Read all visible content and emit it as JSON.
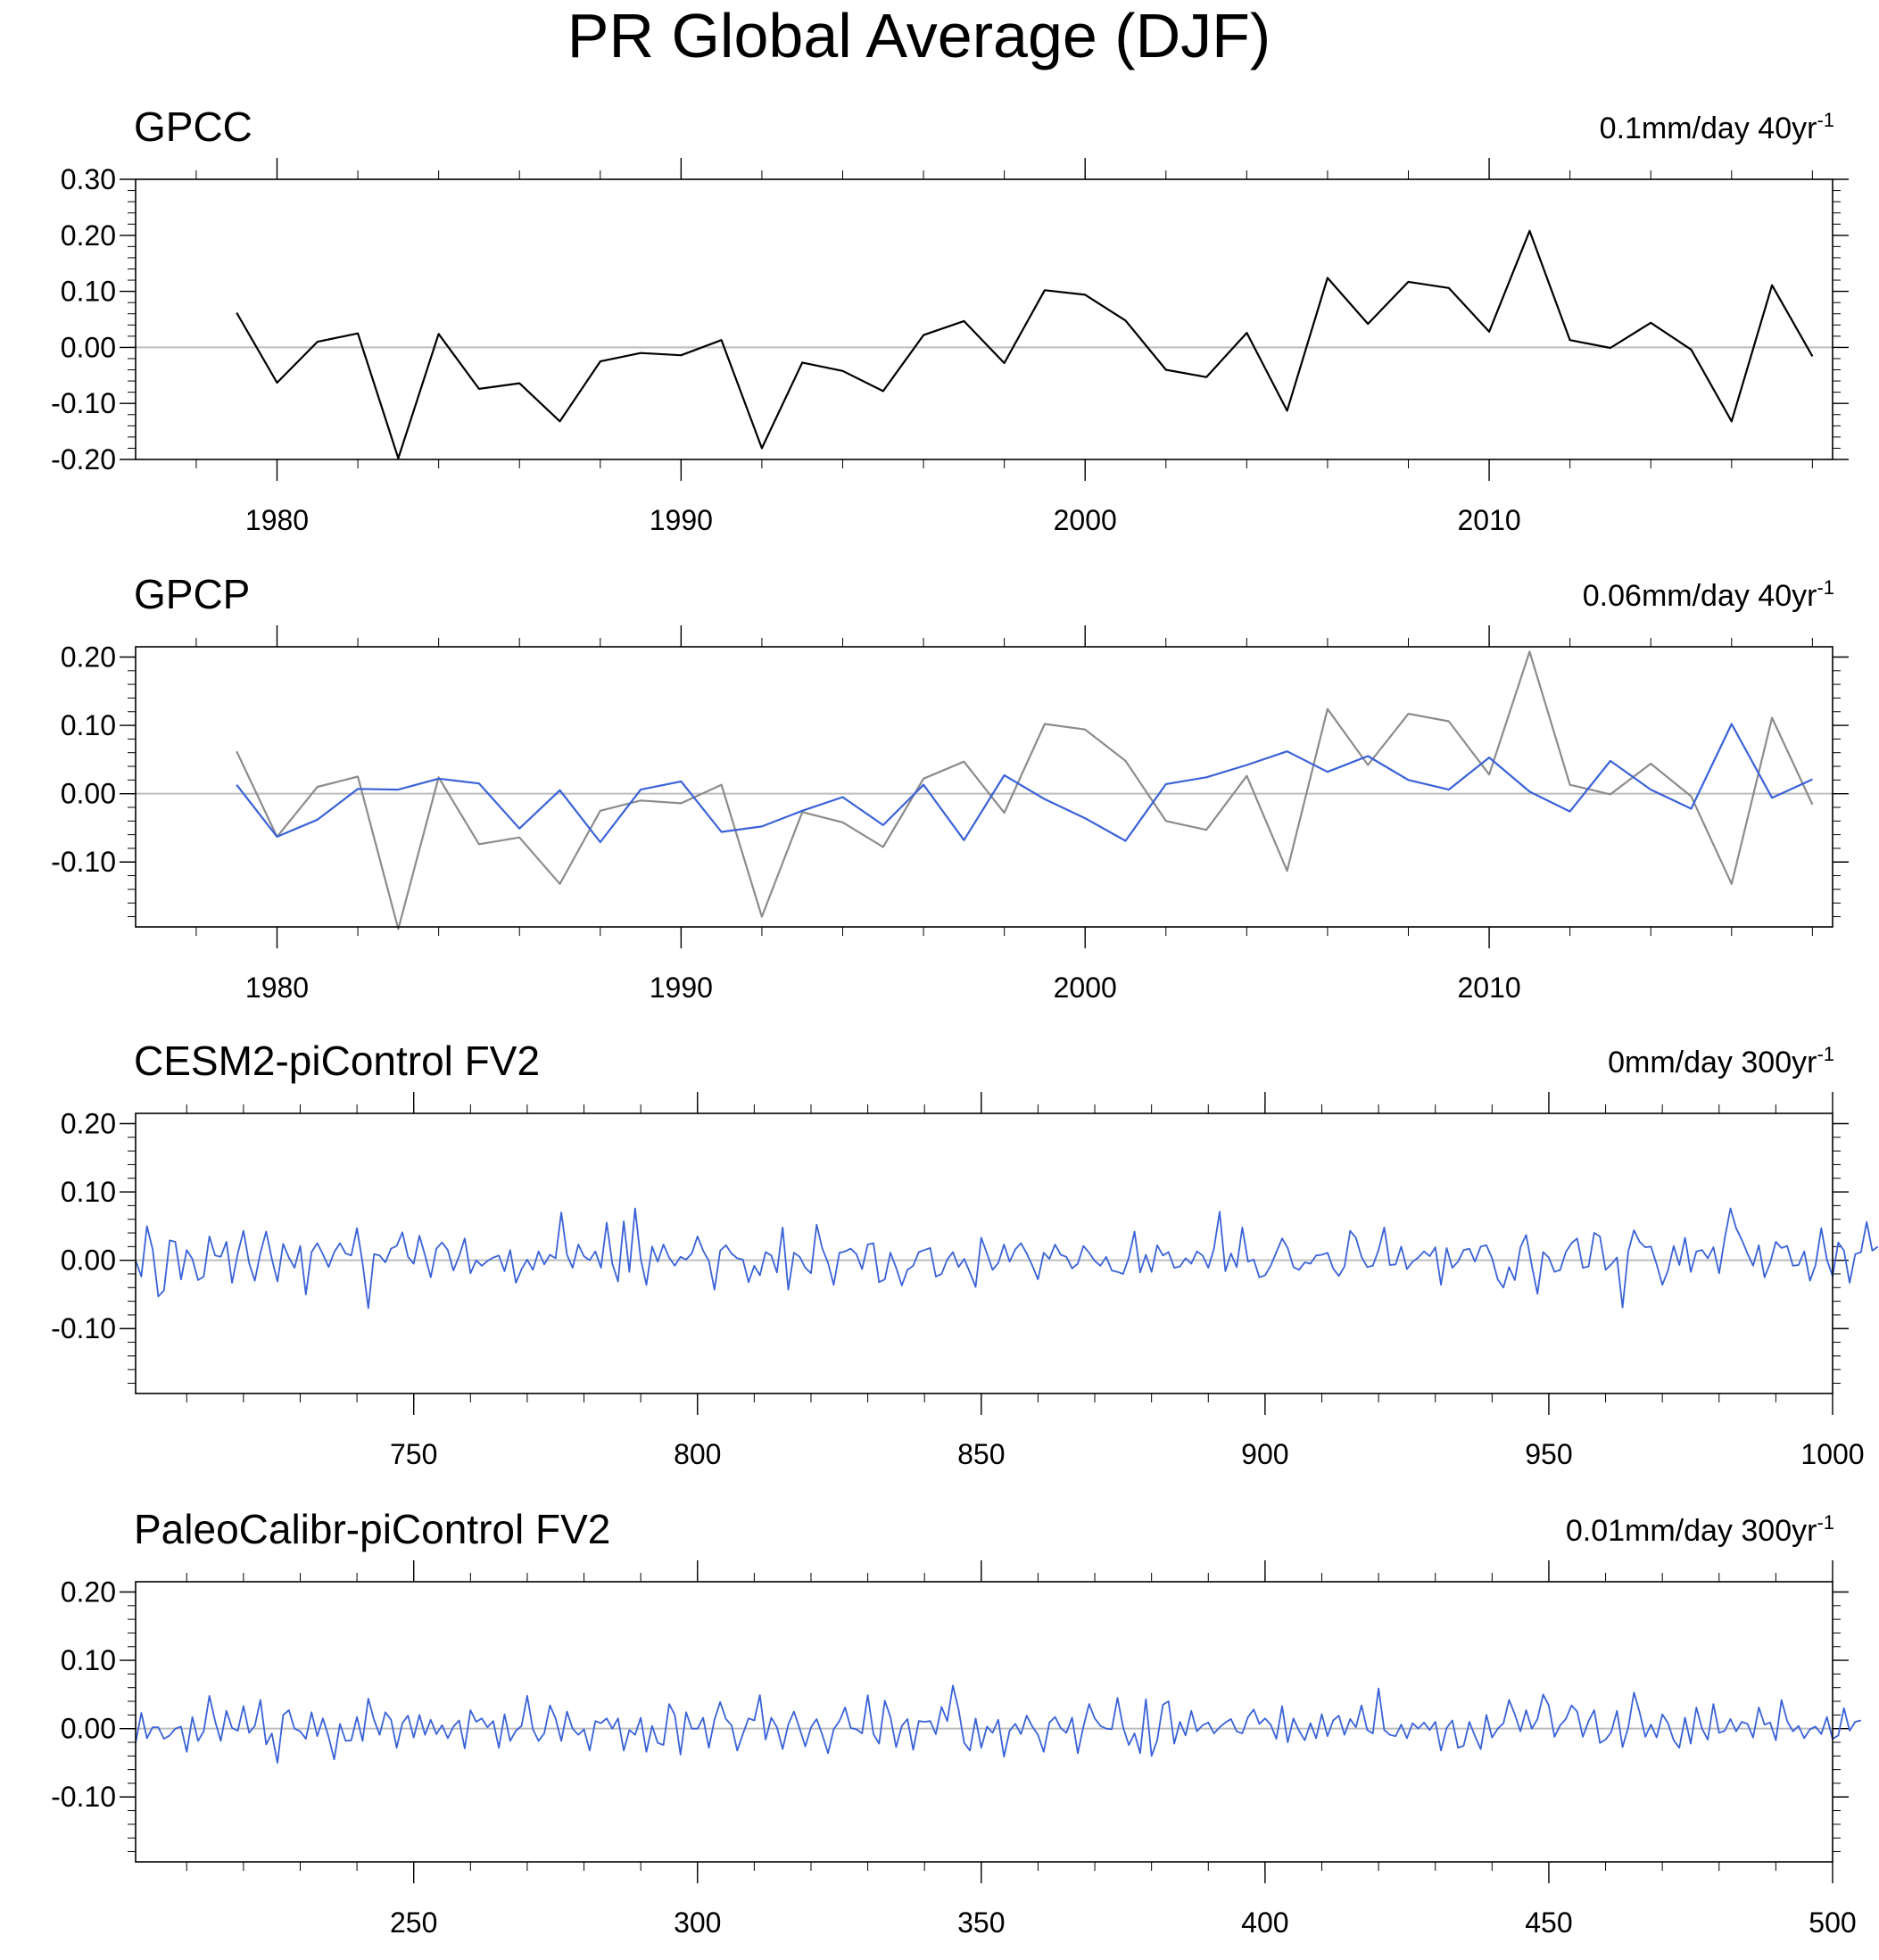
{
  "title": "PR Global Average (DJF)",
  "colors": {
    "obs": "#000000",
    "ref": "#8c8c8c",
    "model": "#3a62d8",
    "zero": "#bdbdbd"
  },
  "chart_data": [
    {
      "type": "line",
      "title": "GPCC",
      "trend_label": "0.1mm/day 40yr",
      "trend_sup": "-1",
      "xlim": [
        1976.5,
        2018.5
      ],
      "ylim": [
        -0.2,
        0.3
      ],
      "yticks": [
        -0.2,
        -0.1,
        0.0,
        0.1,
        0.2,
        0.3
      ],
      "ytick_labels": [
        "-0.20",
        "-0.10",
        "0.00",
        "0.10",
        "0.20",
        "0.30"
      ],
      "xticks": [
        1980,
        1990,
        2000,
        2010
      ],
      "xtick_labels": [
        "1980",
        "1990",
        "2000",
        "2010"
      ],
      "x": [
        1979,
        1980,
        1981,
        1982,
        1983,
        1984,
        1985,
        1986,
        1987,
        1988,
        1989,
        1990,
        1991,
        1992,
        1993,
        1994,
        1995,
        1996,
        1997,
        1998,
        1999,
        2000,
        2001,
        2002,
        2003,
        2004,
        2005,
        2006,
        2007,
        2008,
        2009,
        2010,
        2011,
        2012,
        2013,
        2014,
        2015,
        2016,
        2017,
        2018
      ],
      "series": [
        {
          "name": "GPCC",
          "color": "#000000",
          "values": [
            0.062,
            -0.063,
            0.01,
            0.025,
            -0.198,
            0.024,
            -0.074,
            -0.064,
            -0.132,
            -0.025,
            -0.01,
            -0.014,
            0.013,
            -0.18,
            -0.027,
            -0.042,
            -0.078,
            0.022,
            0.047,
            -0.028,
            0.102,
            0.094,
            0.048,
            -0.04,
            -0.053,
            0.026,
            -0.113,
            0.124,
            0.042,
            0.117,
            0.106,
            0.028,
            0.208,
            0.013,
            -0.001,
            0.044,
            -0.004,
            -0.132,
            0.111,
            -0.016
          ]
        }
      ]
    },
    {
      "type": "line",
      "title": "GPCP",
      "trend_label": "0.06mm/day 40yr",
      "trend_sup": "-1",
      "xlim": [
        1976.5,
        2018.5
      ],
      "ylim": [
        -0.195,
        0.215
      ],
      "yticks": [
        -0.1,
        0.0,
        0.1,
        0.2
      ],
      "ytick_labels": [
        "-0.10",
        "0.00",
        "0.10",
        "0.20"
      ],
      "xticks": [
        1980,
        1990,
        2000,
        2010
      ],
      "xtick_labels": [
        "1980",
        "1990",
        "2000",
        "2010"
      ],
      "x": [
        1979,
        1980,
        1981,
        1982,
        1983,
        1984,
        1985,
        1986,
        1987,
        1988,
        1989,
        1990,
        1991,
        1992,
        1993,
        1994,
        1995,
        1996,
        1997,
        1998,
        1999,
        2000,
        2001,
        2002,
        2003,
        2004,
        2005,
        2006,
        2007,
        2008,
        2009,
        2010,
        2011,
        2012,
        2013,
        2014,
        2015,
        2016,
        2017,
        2018
      ],
      "series": [
        {
          "name": "GPCC",
          "color": "#8c8c8c",
          "values": [
            0.062,
            -0.063,
            0.01,
            0.025,
            -0.198,
            0.024,
            -0.074,
            -0.064,
            -0.132,
            -0.025,
            -0.01,
            -0.014,
            0.013,
            -0.18,
            -0.027,
            -0.042,
            -0.078,
            0.022,
            0.047,
            -0.028,
            0.102,
            0.094,
            0.048,
            -0.04,
            -0.053,
            0.026,
            -0.113,
            0.124,
            0.042,
            0.117,
            0.106,
            0.028,
            0.208,
            0.013,
            -0.001,
            0.044,
            -0.004,
            -0.132,
            0.111,
            -0.016
          ]
        },
        {
          "name": "GPCP",
          "color": "#3a62d8",
          "values": [
            0.013,
            -0.063,
            -0.038,
            0.007,
            0.006,
            0.022,
            0.015,
            -0.051,
            0.005,
            -0.071,
            0.006,
            0.018,
            -0.056,
            -0.048,
            -0.025,
            -0.005,
            -0.046,
            0.013,
            -0.068,
            0.027,
            -0.008,
            -0.036,
            -0.069,
            0.014,
            0.024,
            0.042,
            0.062,
            0.032,
            0.055,
            0.02,
            0.006,
            0.053,
            0.003,
            -0.026,
            0.048,
            0.006,
            -0.022,
            0.102,
            -0.006,
            0.021
          ]
        }
      ]
    },
    {
      "type": "line",
      "title": "CESM2-piControl FV2",
      "trend_label": "0mm/day 300yr",
      "trend_sup": "-1",
      "xlim": [
        701,
        1000
      ],
      "ylim": [
        -0.195,
        0.215
      ],
      "yticks": [
        -0.1,
        0.0,
        0.1,
        0.2
      ],
      "ytick_labels": [
        "-0.10",
        "0.00",
        "0.10",
        "0.20"
      ],
      "xticks": [
        750,
        800,
        850,
        900,
        950,
        1000
      ],
      "xtick_labels": [
        "750",
        "800",
        "850",
        "900",
        "950",
        "1000"
      ],
      "x_start": 701,
      "x_step": 1,
      "series": [
        {
          "name": "CESM2-piControl FV2",
          "color": "#3a62d8",
          "values": [
            0.0,
            -0.024,
            0.05,
            0.016,
            -0.053,
            -0.044,
            0.029,
            0.027,
            -0.028,
            0.015,
            0.002,
            -0.029,
            -0.024,
            0.035,
            0.007,
            0.005,
            0.027,
            -0.033,
            0.01,
            0.043,
            -0.004,
            -0.03,
            0.011,
            0.042,
            0.002,
            -0.031,
            0.024,
            0.004,
            -0.011,
            0.021,
            -0.05,
            0.012,
            0.025,
            0.009,
            -0.01,
            0.012,
            0.025,
            0.01,
            0.007,
            0.047,
            -0.004,
            -0.07,
            0.009,
            0.007,
            -0.003,
            0.017,
            0.021,
            0.041,
            0.005,
            -0.005,
            0.036,
            0.007,
            -0.025,
            0.017,
            0.026,
            0.015,
            -0.015,
            0.006,
            0.032,
            -0.019,
            0.0,
            -0.008,
            -0.001,
            0.004,
            0.007,
            -0.016,
            0.015,
            -0.033,
            -0.013,
            0.001,
            -0.014,
            0.013,
            -0.006,
            0.008,
            0.003,
            0.07,
            0.008,
            -0.011,
            0.023,
            0.006,
            0.0,
            0.013,
            -0.011,
            0.055,
            -0.005,
            -0.031,
            0.057,
            -0.017,
            0.076,
            0.002,
            -0.036,
            0.02,
            -0.002,
            0.023,
            0.004,
            -0.008,
            0.005,
            0.001,
            0.01,
            0.035,
            0.014,
            -0.001,
            -0.043,
            0.014,
            0.022,
            0.01,
            0.003,
            0.001,
            -0.032,
            -0.008,
            -0.022,
            0.012,
            0.007,
            -0.018,
            0.048,
            -0.043,
            0.011,
            0.005,
            -0.011,
            -0.019,
            0.052,
            0.017,
            -0.004,
            -0.036,
            0.011,
            0.013,
            0.017,
            0.009,
            -0.013,
            0.023,
            0.025,
            -0.032,
            -0.028,
            0.011,
            -0.011,
            -0.037,
            -0.014,
            -0.008,
            0.012,
            0.015,
            0.018,
            -0.024,
            -0.02,
            0.001,
            0.012,
            -0.01,
            0.002,
            -0.018,
            -0.039,
            0.033,
            0.01,
            -0.014,
            -0.004,
            0.023,
            -0.002,
            0.016,
            0.025,
            0.01,
            -0.008,
            -0.028,
            0.011,
            0.002,
            0.023,
            0.008,
            0.005,
            -0.012,
            -0.005,
            0.021,
            0.011,
            -0.001,
            -0.008,
            0.005,
            -0.015,
            -0.017,
            -0.02,
            0.004,
            0.042,
            -0.018,
            0.008,
            -0.017,
            0.022,
            0.007,
            0.012,
            -0.011,
            -0.009,
            0.003,
            -0.005,
            0.013,
            0.007,
            -0.011,
            0.017,
            0.071,
            -0.016,
            0.01,
            -0.01,
            0.048,
            -0.002,
            0.001,
            -0.025,
            -0.022,
            -0.008,
            0.012,
            0.032,
            0.018,
            -0.01,
            -0.014,
            -0.003,
            -0.005,
            0.007,
            0.008,
            0.011,
            -0.012,
            -0.023,
            -0.009,
            0.043,
            0.033,
            0.005,
            -0.01,
            -0.008,
            0.015,
            0.048,
            -0.007,
            -0.006,
            0.02,
            -0.013,
            -0.002,
            0.004,
            0.013,
            0.006,
            0.019,
            -0.036,
            0.018,
            -0.011,
            -0.002,
            0.015,
            0.017,
            -0.002,
            0.02,
            0.022,
            0.003,
            -0.028,
            -0.04,
            -0.01,
            -0.029,
            0.019,
            0.037,
            -0.008,
            -0.049,
            0.012,
            0.004,
            -0.017,
            -0.014,
            0.012,
            0.025,
            0.032,
            -0.011,
            -0.009,
            0.04,
            0.035,
            -0.014,
            -0.006,
            0.004,
            -0.069,
            0.013,
            0.044,
            0.027,
            0.019,
            0.02,
            -0.006,
            -0.036,
            -0.015,
            0.021,
            -0.007,
            0.033,
            -0.017,
            0.013,
            0.015,
            0.003,
            0.019,
            -0.019,
            0.032,
            0.076,
            0.047,
            0.03,
            0.01,
            -0.008,
            0.022,
            -0.025,
            -0.004,
            0.027,
            0.018,
            0.021,
            -0.008,
            -0.007,
            0.013,
            -0.03,
            -0.007,
            0.047,
            0.001,
            -0.023,
            0.026,
            0.014,
            -0.033,
            0.009,
            0.012,
            0.056,
            0.014,
            0.02
          ]
        }
      ]
    },
    {
      "type": "line",
      "title": "PaleoCalibr-piControl FV2",
      "trend_label": "0.01mm/day 300yr",
      "trend_sup": "-1",
      "xlim": [
        201,
        500
      ],
      "ylim": [
        -0.195,
        0.215
      ],
      "yticks": [
        -0.1,
        0.0,
        0.1,
        0.2
      ],
      "ytick_labels": [
        "-0.10",
        "0.00",
        "0.10",
        "0.20"
      ],
      "xticks": [
        250,
        300,
        350,
        400,
        450,
        500
      ],
      "xtick_labels": [
        "250",
        "300",
        "350",
        "400",
        "450",
        "500"
      ],
      "x_start": 201,
      "x_step": 1,
      "series": [
        {
          "name": "PaleoCalibr-piControl FV2",
          "color": "#3a62d8",
          "values": [
            -0.021,
            0.023,
            -0.014,
            0.002,
            0.002,
            -0.015,
            -0.01,
            0.0,
            0.003,
            -0.034,
            0.017,
            -0.018,
            -0.004,
            0.048,
            0.011,
            -0.018,
            0.026,
            0.001,
            -0.003,
            0.033,
            -0.006,
            0.004,
            0.042,
            -0.023,
            -0.007,
            -0.05,
            0.02,
            0.027,
            0.0,
            -0.004,
            -0.015,
            0.024,
            -0.011,
            0.015,
            -0.012,
            -0.045,
            0.007,
            -0.018,
            -0.017,
            0.017,
            -0.018,
            0.044,
            0.013,
            -0.009,
            0.024,
            0.013,
            -0.028,
            0.008,
            0.019,
            -0.013,
            0.02,
            -0.009,
            0.013,
            -0.008,
            0.005,
            -0.014,
            0.003,
            0.012,
            -0.029,
            0.027,
            0.01,
            0.015,
            0.002,
            0.011,
            -0.028,
            0.021,
            -0.018,
            -0.003,
            0.004,
            0.048,
            -0.001,
            -0.018,
            -0.007,
            0.034,
            0.015,
            -0.018,
            0.025,
            0.0,
            -0.009,
            -0.001,
            -0.032,
            0.011,
            0.008,
            0.015,
            0.0,
            0.015,
            -0.032,
            -0.002,
            -0.009,
            0.016,
            -0.034,
            0.004,
            -0.021,
            -0.024,
            0.036,
            0.02,
            -0.038,
            0.024,
            0.0,
            0.0,
            0.016,
            -0.028,
            0.013,
            0.039,
            0.014,
            0.005,
            -0.032,
            -0.008,
            0.015,
            0.012,
            0.049,
            -0.016,
            0.016,
            0.002,
            -0.03,
            0.006,
            0.025,
            0.0,
            -0.026,
            0.002,
            0.014,
            -0.009,
            -0.036,
            -0.001,
            0.011,
            0.031,
            0.001,
            -0.001,
            -0.007,
            0.049,
            -0.008,
            -0.022,
            0.041,
            0.017,
            -0.027,
            0.004,
            0.014,
            -0.031,
            0.011,
            0.01,
            0.011,
            -0.008,
            0.032,
            0.011,
            0.063,
            0.028,
            -0.021,
            -0.032,
            0.015,
            -0.028,
            0.003,
            -0.006,
            0.013,
            -0.041,
            -0.003,
            0.007,
            -0.008,
            0.019,
            0.003,
            -0.009,
            -0.034,
            0.009,
            0.017,
            0.001,
            -0.006,
            0.016,
            -0.036,
            0.003,
            0.036,
            0.015,
            0.004,
            0.0,
            -0.001,
            0.045,
            0.002,
            -0.024,
            -0.007,
            -0.036,
            0.043,
            -0.04,
            -0.017,
            0.035,
            0.04,
            -0.022,
            0.01,
            -0.01,
            0.026,
            -0.004,
            0.005,
            0.009,
            -0.007,
            0.002,
            0.009,
            0.014,
            -0.004,
            -0.007,
            0.017,
            0.028,
            0.007,
            0.015,
            0.006,
            -0.015,
            0.033,
            -0.02,
            0.015,
            -0.003,
            -0.017,
            0.008,
            -0.014,
            0.021,
            -0.011,
            0.012,
            0.019,
            -0.009,
            0.014,
            0.002,
            0.034,
            -0.002,
            -0.007,
            0.059,
            -0.002,
            -0.009,
            -0.011,
            0.006,
            -0.014,
            0.008,
            0.0,
            0.009,
            -0.002,
            0.01,
            -0.032,
            0.001,
            0.012,
            -0.028,
            -0.025,
            0.01,
            -0.011,
            -0.03,
            0.02,
            -0.013,
            0.0,
            0.008,
            0.042,
            0.021,
            -0.004,
            0.027,
            0.0,
            0.014,
            0.05,
            0.034,
            -0.012,
            0.005,
            0.014,
            0.034,
            0.025,
            -0.012,
            0.011,
            0.027,
            -0.021,
            -0.016,
            -0.005,
            0.026,
            -0.027,
            0.002,
            0.053,
            0.024,
            -0.012,
            0.006,
            -0.013,
            0.021,
            0.008,
            -0.017,
            -0.028,
            0.016,
            -0.022,
            0.031,
            0.0,
            -0.016,
            0.036,
            -0.006,
            -0.003,
            0.014,
            -0.004,
            0.01,
            0.007,
            -0.013,
            0.031,
            0.006,
            0.009,
            -0.017,
            0.042,
            0.011,
            -0.004,
            0.004,
            -0.014,
            -0.001,
            0.003,
            -0.008,
            0.017,
            -0.015,
            -0.01,
            0.03,
            -0.003,
            0.01,
            0.012
          ]
        }
      ]
    }
  ]
}
